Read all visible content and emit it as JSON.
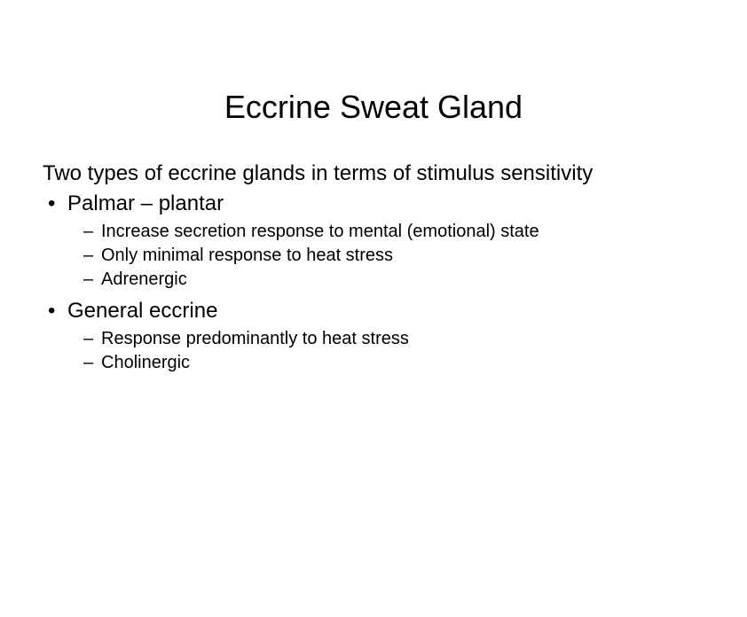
{
  "slide": {
    "title": "Eccrine Sweat Gland",
    "intro": "Two types of eccrine glands in terms of stimulus sensitivity",
    "sections": [
      {
        "heading": "Palmar – plantar",
        "subitems": [
          "Increase secretion response to mental (emotional) state",
          "Only minimal response to heat stress",
          "Adrenergic"
        ]
      },
      {
        "heading": "General eccrine",
        "subitems": [
          "Response predominantly to heat stress",
          "Cholinergic"
        ]
      }
    ]
  },
  "style": {
    "background_color": "#ffffff",
    "text_color": "#000000",
    "title_fontsize": 36,
    "body_fontsize": 24,
    "sub_fontsize": 20,
    "font_family": "Arial"
  }
}
